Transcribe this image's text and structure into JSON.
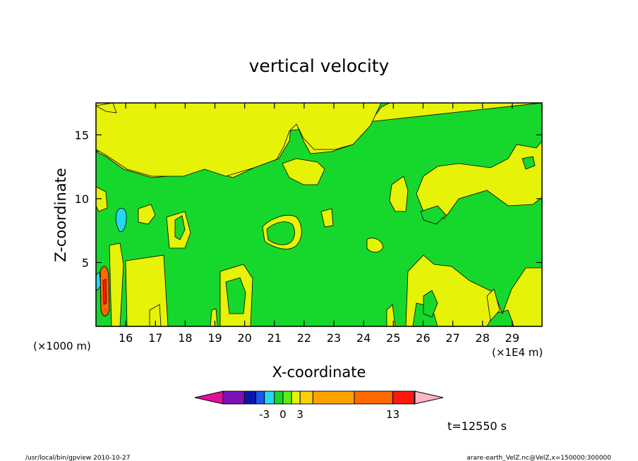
{
  "chart_data": {
    "type": "heatmap",
    "title": "vertical velocity",
    "xlabel": "X-coordinate",
    "ylabel": "Z-coordinate",
    "x_unit_left": "(×1000 m)",
    "x_unit_right": "(×1E4 m)",
    "xlim": [
      15.0,
      30.0
    ],
    "ylim": [
      0.0,
      17.5
    ],
    "x_ticks": [
      16,
      17,
      18,
      19,
      20,
      21,
      22,
      23,
      24,
      25,
      26,
      27,
      28,
      29
    ],
    "x_tick_labels": [
      "16",
      "17",
      "18",
      "19",
      "20",
      "21",
      "22",
      "23",
      "24",
      "25",
      "26",
      "27",
      "28",
      "29"
    ],
    "y_ticks": [
      5,
      10,
      15
    ],
    "y_tick_labels": [
      "5",
      "10",
      "15"
    ],
    "colorbar": {
      "colors": [
        "#e0109e",
        "#7c11b4",
        "#0a16a8",
        "#1a55f0",
        "#23d8f5",
        "#16d82c",
        "#5fee12",
        "#e6f207",
        "#ffd000",
        "#ffa200",
        "#ff6a00",
        "#ff1a10",
        "#ff7c7c",
        "#ffb6c2"
      ],
      "labels": [
        {
          "text": "-3",
          "boundary": 3
        },
        {
          "text": "0",
          "boundary": 5
        },
        {
          "text": "3",
          "boundary": 7
        },
        {
          "text": "13",
          "boundary": 10
        }
      ]
    },
    "time_label": "t=12550 s",
    "field_colors": {
      "background_negative": "#16d82c",
      "positive": "#e6f207",
      "strong_negative": "#23d8f5",
      "strong_positive": "#ff6a00"
    }
  },
  "footer": {
    "left": "/usr/local/bin/gpview 2010-10-27",
    "right": "arare-earth_VelZ.nc@VelZ,x=150000:300000"
  }
}
